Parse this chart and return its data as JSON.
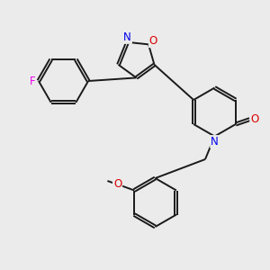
{
  "background_color": "#ebebeb",
  "bond_color": "#1a1a1a",
  "bond_width": 1.4,
  "atom_colors": {
    "N": "#0000ee",
    "O": "#dd0000",
    "F": "#ee00ee",
    "C": "#1a1a1a"
  },
  "font_size": 8.5,
  "fig_width": 3.0,
  "fig_height": 3.0,
  "dpi": 100
}
